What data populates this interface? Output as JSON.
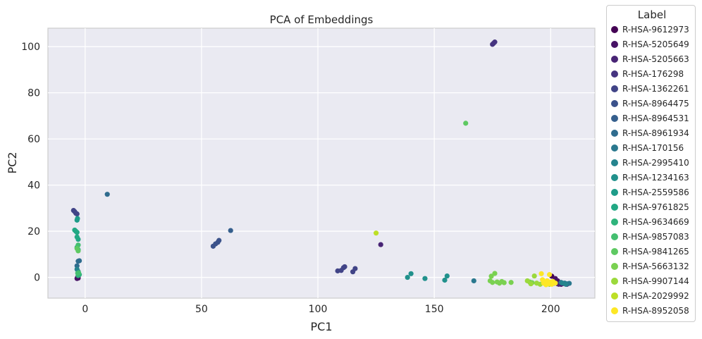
{
  "chart_data": {
    "type": "scatter",
    "title": "PCA of Embeddings",
    "xlabel": "PC1",
    "ylabel": "PC2",
    "xlim": [
      -16,
      219
    ],
    "ylim": [
      -9,
      108
    ],
    "xticks": [
      0,
      50,
      100,
      150,
      200
    ],
    "yticks": [
      0,
      20,
      40,
      60,
      80,
      100
    ],
    "grid": true,
    "legend": {
      "title": "Label",
      "placement": "outside-right"
    },
    "series": [
      {
        "name": "R-HSA-9612973",
        "color": "#440154",
        "points": [
          [
            -3,
            -0.3
          ],
          [
            -3.2,
            0.1
          ],
          [
            200.5,
            0.5
          ],
          [
            201,
            -2.5
          ],
          [
            203,
            -2.8
          ],
          [
            204.5,
            -3
          ],
          [
            206,
            -2.6
          ]
        ]
      },
      {
        "name": "R-HSA-5205649",
        "color": "#471365",
        "points": [
          [
            -3.5,
            -0.5
          ],
          [
            -3,
            0.3
          ],
          [
            202,
            -0.5
          ],
          [
            203,
            -1.5
          ],
          [
            205,
            -2.8
          ],
          [
            207,
            -3
          ]
        ]
      },
      {
        "name": "R-HSA-5205663",
        "color": "#482475",
        "points": [
          [
            127,
            14.2
          ],
          [
            201.5,
            -2.5
          ],
          [
            203.5,
            -3
          ]
        ]
      },
      {
        "name": "R-HSA-176298",
        "color": "#463480",
        "points": [
          [
            175,
            101
          ],
          [
            175.5,
            101.5
          ],
          [
            176,
            102
          ]
        ]
      },
      {
        "name": "R-HSA-1362261",
        "color": "#414487",
        "points": [
          [
            108.5,
            2.8
          ],
          [
            110,
            3
          ],
          [
            111,
            4.2
          ],
          [
            111.5,
            4.6
          ],
          [
            115,
            2.4
          ],
          [
            116,
            3.8
          ],
          [
            -5,
            29
          ],
          [
            -4.5,
            28.5
          ],
          [
            -4,
            27.8
          ],
          [
            -3.5,
            27.5
          ]
        ]
      },
      {
        "name": "R-HSA-8964475",
        "color": "#3b528b",
        "points": [
          [
            55,
            13.5
          ],
          [
            56,
            14.5
          ],
          [
            57,
            15.2
          ],
          [
            57.5,
            16
          ]
        ]
      },
      {
        "name": "R-HSA-8964531",
        "color": "#355f8d",
        "points": [
          [
            62.5,
            20.3
          ]
        ]
      },
      {
        "name": "R-HSA-8961934",
        "color": "#2f6c8e",
        "points": [
          [
            9.5,
            36
          ],
          [
            -3,
            7
          ],
          [
            -3.5,
            5
          ],
          [
            -2.5,
            7.2
          ]
        ]
      },
      {
        "name": "R-HSA-170156",
        "color": "#2a788e",
        "points": [
          [
            167,
            -1.5
          ],
          [
            204.5,
            -2.2
          ],
          [
            206,
            -2.5
          ],
          [
            207,
            -2.8
          ],
          [
            208,
            -2.6
          ]
        ]
      },
      {
        "name": "R-HSA-2995410",
        "color": "#25848e",
        "points": [
          [
            -3,
            2.5
          ],
          [
            -3.5,
            3.5
          ],
          [
            205,
            -2.5
          ],
          [
            206.5,
            -3
          ]
        ]
      },
      {
        "name": "R-HSA-1234163",
        "color": "#21918c",
        "points": [
          [
            138.5,
            0
          ],
          [
            140,
            1.6
          ],
          [
            146,
            -0.5
          ],
          [
            154.5,
            -1.2
          ],
          [
            155.5,
            0.6
          ]
        ]
      },
      {
        "name": "R-HSA-2559586",
        "color": "#1e9c89",
        "points": [
          [
            -3.5,
            24.8
          ],
          [
            -3.3,
            25.5
          ],
          [
            -3,
            1.5
          ]
        ]
      },
      {
        "name": "R-HSA-9761825",
        "color": "#22a884",
        "points": [
          [
            -4.5,
            20.5
          ],
          [
            -4,
            20
          ],
          [
            -3.5,
            19.5
          ],
          [
            -3.5,
            17.5
          ],
          [
            -3,
            16.5
          ]
        ]
      },
      {
        "name": "R-HSA-9634669",
        "color": "#2fb47c",
        "points": [
          [
            -3.5,
            13
          ],
          [
            -3,
            12
          ],
          [
            -3,
            0.8
          ],
          [
            -2.5,
            1.2
          ]
        ]
      },
      {
        "name": "R-HSA-9857083",
        "color": "#44bf70",
        "points": [
          [
            -2.8,
            2
          ],
          [
            -3.2,
            1.8
          ],
          [
            -3,
            14
          ]
        ]
      },
      {
        "name": "R-HSA-9841265",
        "color": "#5ec962",
        "points": [
          [
            163.5,
            66.8
          ],
          [
            -3,
            11.5
          ],
          [
            -3.5,
            12.5
          ]
        ]
      },
      {
        "name": "R-HSA-5663132",
        "color": "#7ad151",
        "points": [
          [
            174,
            -1.5
          ],
          [
            174.5,
            0.5
          ],
          [
            175,
            -2.2
          ],
          [
            176,
            1.7
          ],
          [
            177,
            -2
          ],
          [
            178,
            -2.5
          ],
          [
            179,
            -1.8
          ],
          [
            180,
            -2.3
          ],
          [
            183,
            -2.2
          ],
          [
            191,
            -2
          ],
          [
            192,
            -2.3
          ]
        ]
      },
      {
        "name": "R-HSA-9907144",
        "color": "#9bd93c",
        "points": [
          [
            190,
            -1.5
          ],
          [
            191.5,
            -2.8
          ],
          [
            193,
            0.6
          ],
          [
            194,
            -2.5
          ],
          [
            195.5,
            -3
          ],
          [
            197,
            -2
          ],
          [
            198,
            -2.6
          ],
          [
            199.5,
            -3
          ]
        ]
      },
      {
        "name": "R-HSA-2029992",
        "color": "#bddf26",
        "points": [
          [
            125,
            19.2
          ]
        ]
      },
      {
        "name": "R-HSA-8952058",
        "color": "#fde725",
        "points": [
          [
            196,
            1.6
          ],
          [
            196.5,
            -1
          ],
          [
            197,
            -2.5
          ],
          [
            198,
            -3.2
          ],
          [
            198.5,
            -1.5
          ],
          [
            199,
            -2.8
          ],
          [
            199.5,
            1.2
          ],
          [
            200,
            -2
          ],
          [
            200.5,
            -3
          ],
          [
            201,
            -1.8
          ],
          [
            202,
            -2.5
          ],
          [
            198,
            -3
          ],
          [
            197.5,
            -2
          ]
        ]
      }
    ]
  }
}
